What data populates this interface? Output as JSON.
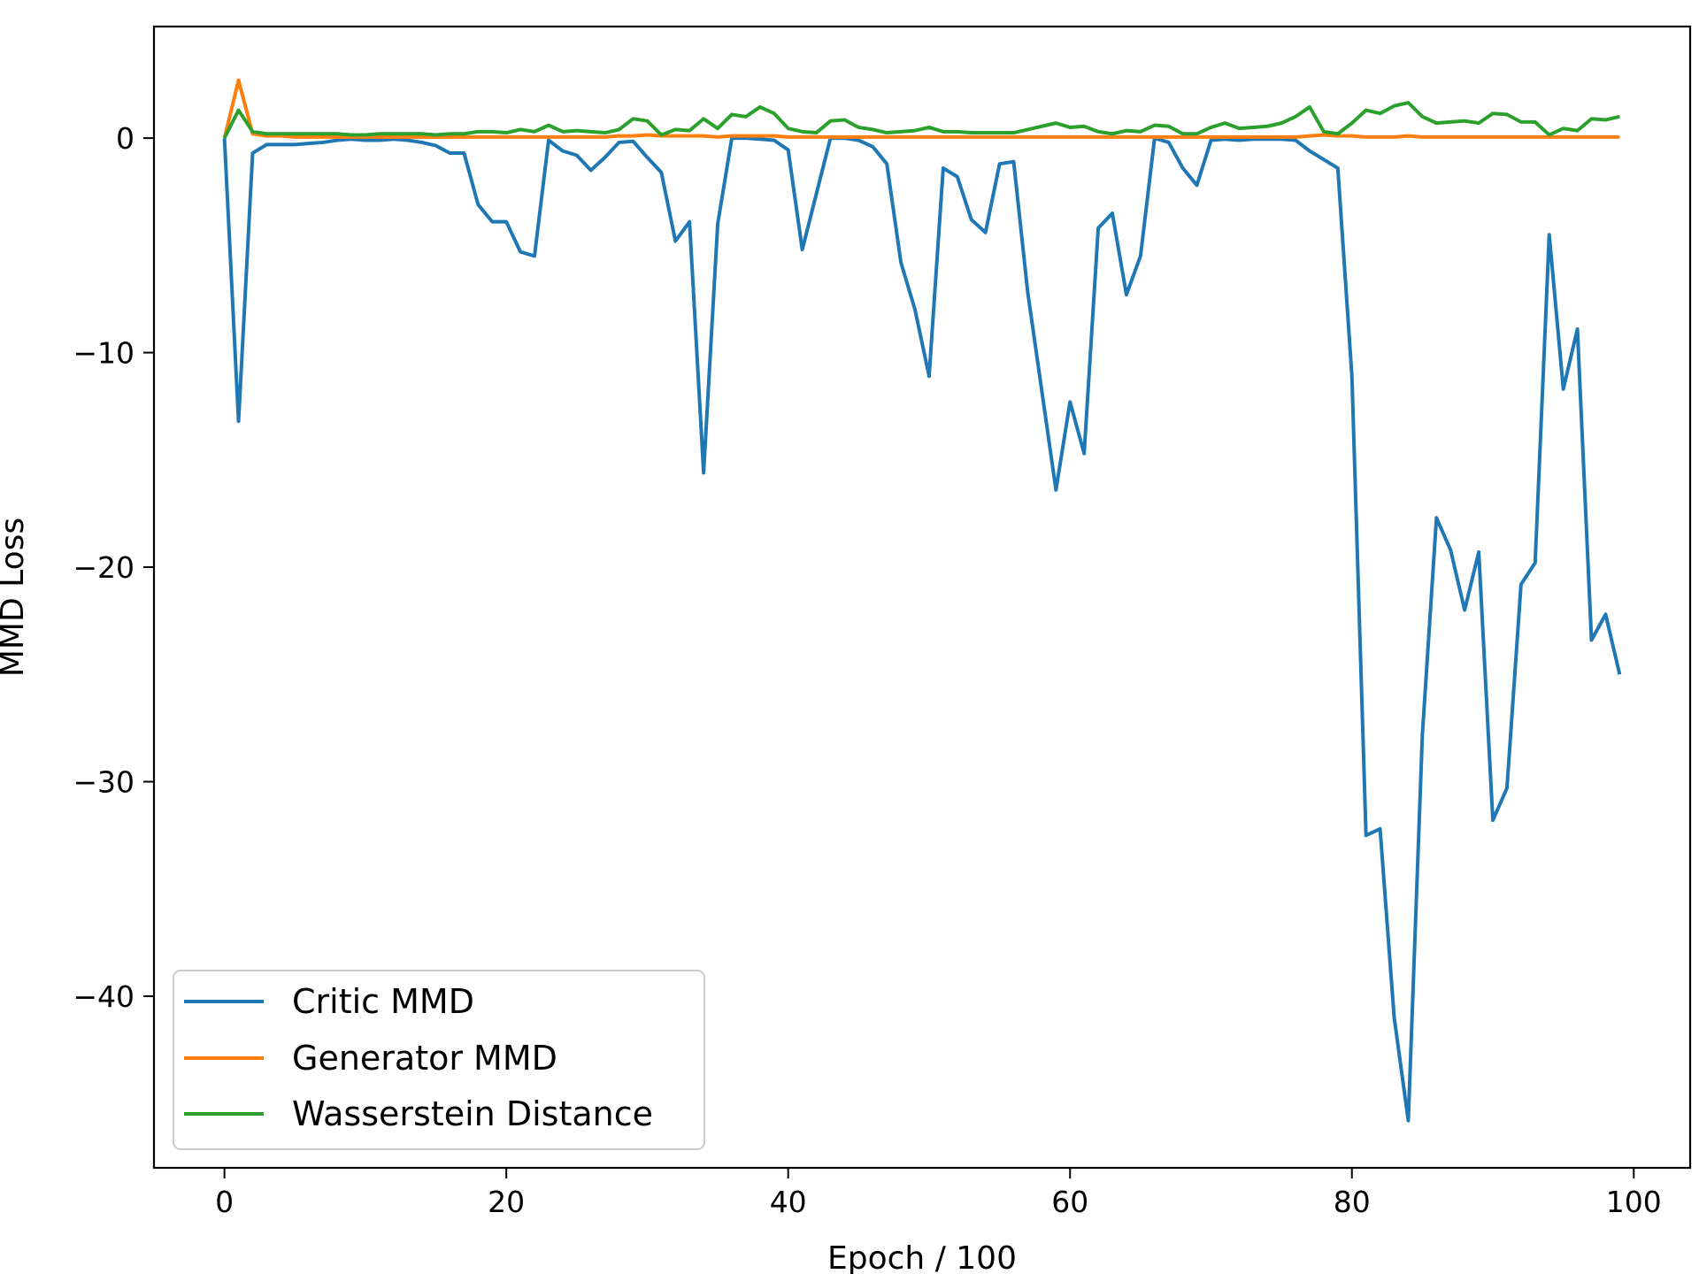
{
  "chart_data": {
    "type": "line",
    "xlabel": "Epoch / 100",
    "ylabel": "MMD Loss",
    "xlim": [
      -5,
      104
    ],
    "ylim": [
      -48,
      5.2
    ],
    "xticks": [
      0,
      20,
      40,
      60,
      80,
      100
    ],
    "yticks": [
      0,
      -10,
      -20,
      -30,
      -40
    ],
    "ytick_labels": [
      "0",
      "−10",
      "−20",
      "−30",
      "−40"
    ],
    "grid": false,
    "legend_position": "lower-left",
    "x": [
      0,
      1,
      2,
      3,
      4,
      5,
      6,
      7,
      8,
      9,
      10,
      11,
      12,
      13,
      14,
      15,
      16,
      17,
      18,
      19,
      20,
      21,
      22,
      23,
      24,
      25,
      26,
      27,
      28,
      29,
      30,
      31,
      32,
      33,
      34,
      35,
      36,
      37,
      38,
      39,
      40,
      41,
      42,
      43,
      44,
      45,
      46,
      47,
      48,
      49,
      50,
      51,
      52,
      53,
      54,
      55,
      56,
      57,
      58,
      59,
      60,
      61,
      62,
      63,
      64,
      65,
      66,
      67,
      68,
      69,
      70,
      71,
      72,
      73,
      74,
      75,
      76,
      77,
      78,
      79,
      80,
      81,
      82,
      83,
      84,
      85,
      86,
      87,
      88,
      89,
      90,
      91,
      92,
      93,
      94,
      95,
      96,
      97,
      98,
      99
    ],
    "series": [
      {
        "name": "Critic MMD",
        "color": "#1f77b4",
        "values": [
          0,
          -13.2,
          -0.7,
          -0.3,
          -0.3,
          -0.3,
          -0.25,
          -0.2,
          -0.1,
          -0.05,
          -0.1,
          -0.1,
          -0.05,
          -0.1,
          -0.2,
          -0.35,
          -0.7,
          -0.7,
          -3.1,
          -3.9,
          -3.9,
          -5.3,
          -5.5,
          -0.1,
          -0.6,
          -0.8,
          -1.5,
          -0.9,
          -0.2,
          -0.15,
          -0.9,
          -1.6,
          -4.8,
          -3.9,
          -15.6,
          -4.0,
          0,
          0,
          -0.05,
          -0.1,
          -0.55,
          -5.2,
          -2.6,
          0,
          0,
          -0.1,
          -0.4,
          -1.2,
          -5.8,
          -8.0,
          -11.1,
          -1.4,
          -1.8,
          -3.8,
          -4.4,
          -1.2,
          -1.1,
          -7.2,
          -11.8,
          -16.4,
          -12.3,
          -14.7,
          -4.2,
          -3.5,
          -7.3,
          -5.5,
          0,
          -0.2,
          -1.4,
          -2.2,
          -0.1,
          -0.05,
          -0.1,
          -0.05,
          -0.05,
          -0.05,
          -0.1,
          -0.6,
          -1.0,
          -1.4,
          -11.1,
          -32.5,
          -32.2,
          -41.0,
          -45.8,
          -27.8,
          -17.7,
          -19.2,
          -22.0,
          -19.3,
          -31.8,
          -30.3,
          -20.8,
          -19.8,
          -4.5,
          -11.7,
          -8.9,
          -23.4,
          -22.2,
          -25.0
        ]
      },
      {
        "name": "Generator MMD",
        "color": "#ff7f0e",
        "values": [
          0,
          2.7,
          0.2,
          0.1,
          0.1,
          0.05,
          0.05,
          0.05,
          0.05,
          0.05,
          0.05,
          0.05,
          0.05,
          0.05,
          0.05,
          0.05,
          0.05,
          0.05,
          0.05,
          0.05,
          0.05,
          0.05,
          0.05,
          0.05,
          0.05,
          0.05,
          0.05,
          0.05,
          0.1,
          0.1,
          0.15,
          0.1,
          0.1,
          0.1,
          0.1,
          0.05,
          0.1,
          0.1,
          0.1,
          0.1,
          0.05,
          0.05,
          0.05,
          0.05,
          0.05,
          0.05,
          0.05,
          0.05,
          0.05,
          0.05,
          0.05,
          0.05,
          0.05,
          0.05,
          0.05,
          0.05,
          0.05,
          0.05,
          0.05,
          0.05,
          0.05,
          0.05,
          0.05,
          0.05,
          0.05,
          0.05,
          0.05,
          0.05,
          0.05,
          0.05,
          0.05,
          0.05,
          0.05,
          0.05,
          0.05,
          0.05,
          0.05,
          0.1,
          0.15,
          0.1,
          0.1,
          0.05,
          0.05,
          0.05,
          0.1,
          0.05,
          0.05,
          0.05,
          0.05,
          0.05,
          0.05,
          0.05,
          0.05,
          0.05,
          0.05,
          0.05,
          0.05,
          0.05,
          0.05,
          0.05
        ]
      },
      {
        "name": "Wasserstein Distance",
        "color": "#2ca02c",
        "values": [
          0,
          1.3,
          0.3,
          0.2,
          0.2,
          0.2,
          0.2,
          0.2,
          0.2,
          0.15,
          0.15,
          0.2,
          0.2,
          0.2,
          0.2,
          0.15,
          0.2,
          0.2,
          0.3,
          0.3,
          0.25,
          0.4,
          0.3,
          0.6,
          0.3,
          0.35,
          0.3,
          0.25,
          0.4,
          0.9,
          0.8,
          0.15,
          0.4,
          0.35,
          0.9,
          0.45,
          1.1,
          1.0,
          1.45,
          1.15,
          0.45,
          0.3,
          0.25,
          0.8,
          0.85,
          0.5,
          0.4,
          0.25,
          0.3,
          0.35,
          0.5,
          0.3,
          0.3,
          0.25,
          0.25,
          0.25,
          0.25,
          0.4,
          0.55,
          0.7,
          0.5,
          0.55,
          0.3,
          0.2,
          0.35,
          0.3,
          0.6,
          0.55,
          0.2,
          0.2,
          0.5,
          0.7,
          0.45,
          0.5,
          0.55,
          0.7,
          1.0,
          1.45,
          0.3,
          0.2,
          0.7,
          1.3,
          1.15,
          1.5,
          1.65,
          1.0,
          0.7,
          0.75,
          0.8,
          0.7,
          1.15,
          1.1,
          0.75,
          0.75,
          0.15,
          0.45,
          0.35,
          0.9,
          0.85,
          1.0
        ]
      }
    ]
  }
}
